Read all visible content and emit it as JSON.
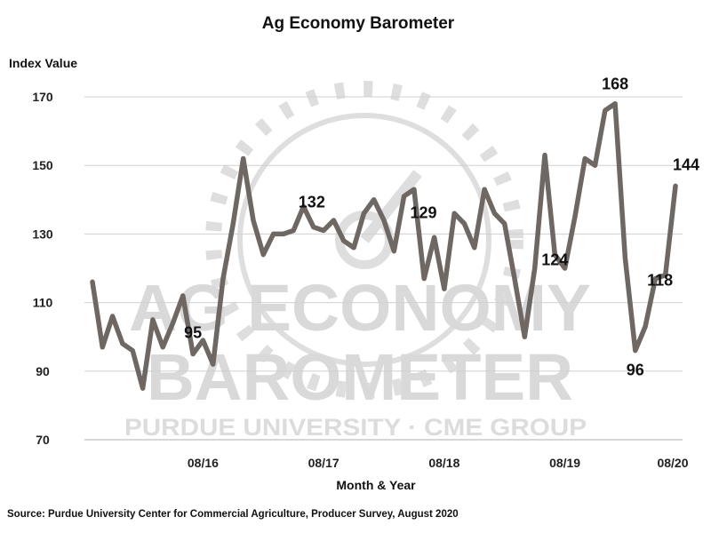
{
  "chart_data": {
    "type": "line",
    "title": "Ag Economy Barometer",
    "ylabel": "Index Value",
    "xlabel": "Month & Year",
    "ylim": [
      70,
      180
    ],
    "yticks": [
      70,
      90,
      110,
      130,
      150,
      170
    ],
    "xticks": [
      {
        "label": "08/16",
        "index": 11
      },
      {
        "label": "08/17",
        "index": 23
      },
      {
        "label": "08/18",
        "index": 35
      },
      {
        "label": "08/19",
        "index": 47
      },
      {
        "label": "08/20",
        "index": 59
      }
    ],
    "grid": true,
    "line_color": "#6e6762",
    "series": [
      {
        "values": [
          116,
          97,
          106,
          98,
          96,
          85,
          105,
          97,
          104,
          112,
          95,
          99,
          92,
          117,
          133,
          152,
          134,
          124,
          130,
          130,
          131,
          138,
          132,
          131,
          134,
          128,
          126,
          136,
          140,
          134,
          125,
          141,
          143,
          117,
          129,
          114,
          136,
          133,
          126,
          143,
          136,
          133,
          117,
          100,
          120,
          153,
          124,
          120,
          135,
          152,
          150,
          166,
          168,
          123,
          96,
          103,
          117,
          118,
          144
        ]
      }
    ],
    "data_labels": [
      {
        "index": 10,
        "text": "95"
      },
      {
        "index": 22,
        "text": "132"
      },
      {
        "index": 34,
        "text": "129"
      },
      {
        "index": 46,
        "text": "124"
      },
      {
        "index": 52,
        "text": "168"
      },
      {
        "index": 54,
        "text": "96"
      },
      {
        "index": 57,
        "text": "118"
      },
      {
        "index": 58,
        "text": "144"
      }
    ],
    "source": "Source: Purdue University Center for Commercial Agriculture, Producer Survey, August 2020"
  },
  "watermark": {
    "line1": "AG ECONOMY",
    "line2": "BAROMETER",
    "line3": "PURDUE UNIVERSITY · CME GROUP",
    "icon": "gauge-icon"
  }
}
